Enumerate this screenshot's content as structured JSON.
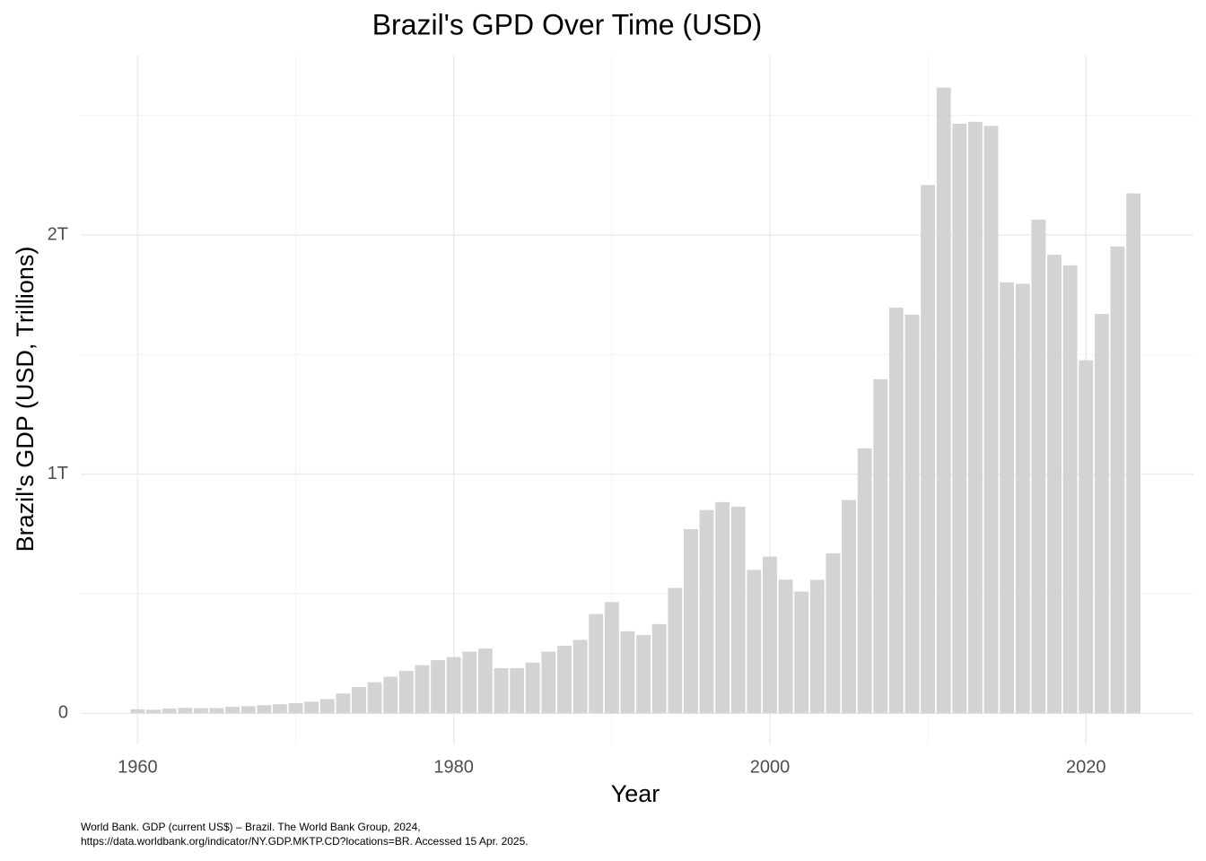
{
  "chart_data": {
    "type": "bar",
    "title": "Brazil's GPD Over Time (USD)",
    "x_label": "Year",
    "y_label": "Brazil's GDP (USD, Trillions)",
    "caption": [
      "World Bank. GDP (current US$) – Brazil. The World Bank Group, 2024,",
      "https://data.worldbank.org/indicator/NY.GDP.MKTP.CD?locations=BR. Accessed 15 Apr. 2025."
    ],
    "x": [
      1960,
      1961,
      1962,
      1963,
      1964,
      1965,
      1966,
      1967,
      1968,
      1969,
      1970,
      1971,
      1972,
      1973,
      1974,
      1975,
      1976,
      1977,
      1978,
      1979,
      1980,
      1981,
      1982,
      1983,
      1984,
      1985,
      1986,
      1987,
      1988,
      1989,
      1990,
      1991,
      1992,
      1993,
      1994,
      1995,
      1996,
      1997,
      1998,
      1999,
      2000,
      2001,
      2002,
      2003,
      2004,
      2005,
      2006,
      2007,
      2008,
      2009,
      2010,
      2011,
      2012,
      2013,
      2014,
      2015,
      2016,
      2017,
      2018,
      2019,
      2020,
      2021,
      2022,
      2023
    ],
    "values": [
      0.017,
      0.015,
      0.02,
      0.023,
      0.021,
      0.022,
      0.027,
      0.03,
      0.034,
      0.038,
      0.042,
      0.049,
      0.059,
      0.083,
      0.11,
      0.13,
      0.153,
      0.177,
      0.201,
      0.222,
      0.235,
      0.258,
      0.271,
      0.189,
      0.189,
      0.212,
      0.258,
      0.282,
      0.307,
      0.415,
      0.465,
      0.343,
      0.327,
      0.373,
      0.524,
      0.77,
      0.85,
      0.883,
      0.864,
      0.6,
      0.655,
      0.559,
      0.509,
      0.558,
      0.669,
      0.892,
      1.108,
      1.397,
      1.696,
      1.667,
      2.209,
      2.616,
      2.465,
      2.473,
      2.456,
      1.802,
      1.796,
      2.064,
      1.917,
      1.873,
      1.476,
      1.67,
      1.952,
      2.174
    ],
    "color": "#d3d3d3",
    "xlim": [
      1956.4,
      2026.8
    ],
    "xticks": [
      1960,
      1980,
      2000,
      2020
    ],
    "x_minor_grid": [
      1970,
      1990,
      2010
    ],
    "ylim": [
      -0.13,
      2.75
    ],
    "yticks": [
      0,
      {
        "value": 1,
        "label": "1T"
      },
      {
        "value": 2,
        "label": "2T"
      }
    ],
    "y_minor_grid": [
      0.5,
      1.5,
      2.5
    ],
    "grid": true
  }
}
